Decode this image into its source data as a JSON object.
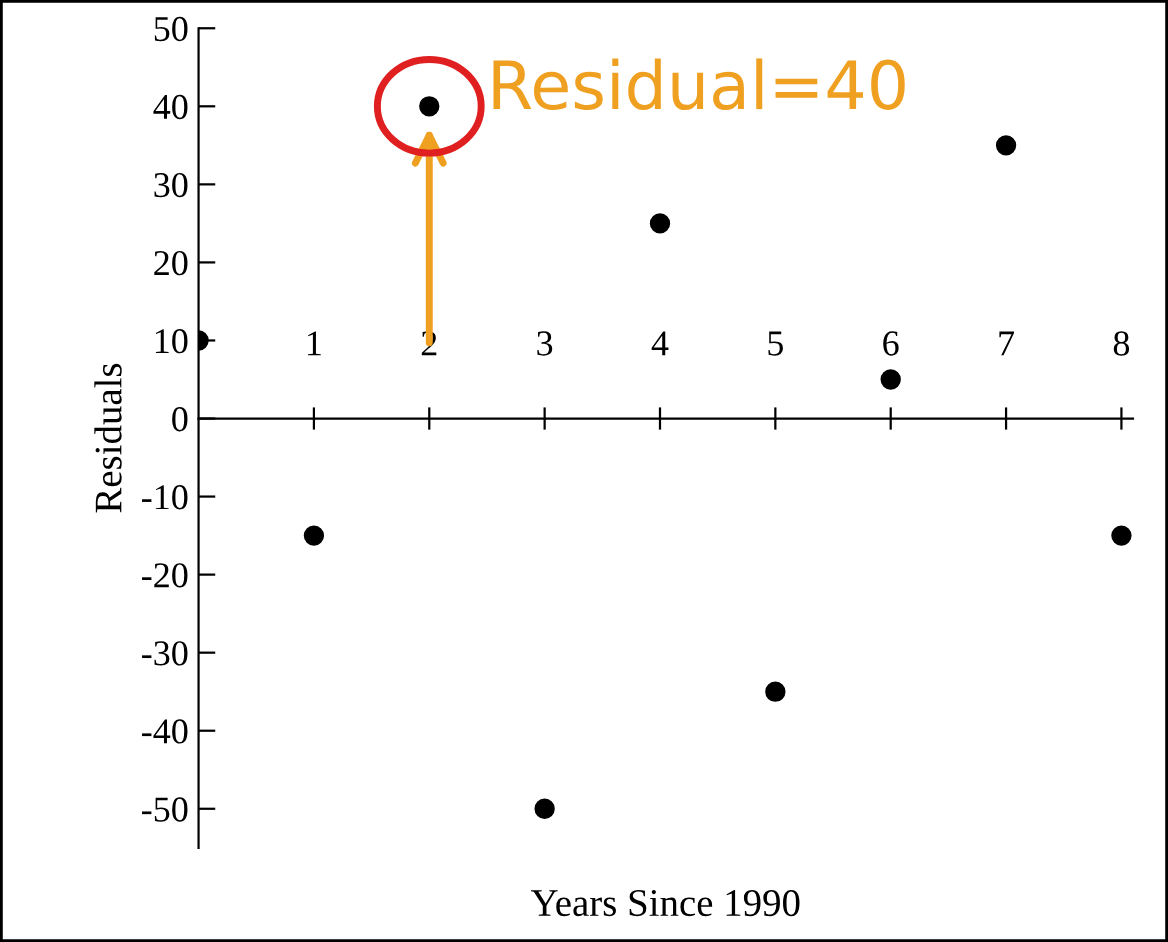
{
  "chart_data": {
    "type": "scatter",
    "xlabel": "Years Since 1990",
    "ylabel": "Residuals",
    "x": [
      0,
      1,
      2,
      3,
      4,
      5,
      6,
      7,
      8
    ],
    "values": [
      10,
      -15,
      40,
      -50,
      25,
      -35,
      5,
      35,
      -15
    ],
    "color": "#000000",
    "marker": "circle",
    "xlim": [
      0,
      8.1
    ],
    "xticks": [
      1,
      2,
      3,
      4,
      5,
      6,
      7,
      8
    ],
    "ylim": [
      -55,
      50
    ],
    "yticks": [
      -50,
      -40,
      -30,
      -20,
      -10,
      0,
      10,
      20,
      30,
      40,
      50
    ],
    "grid": false,
    "annotations": [
      {
        "text": "Residual=40",
        "x": 2,
        "y": 40
      }
    ]
  }
}
